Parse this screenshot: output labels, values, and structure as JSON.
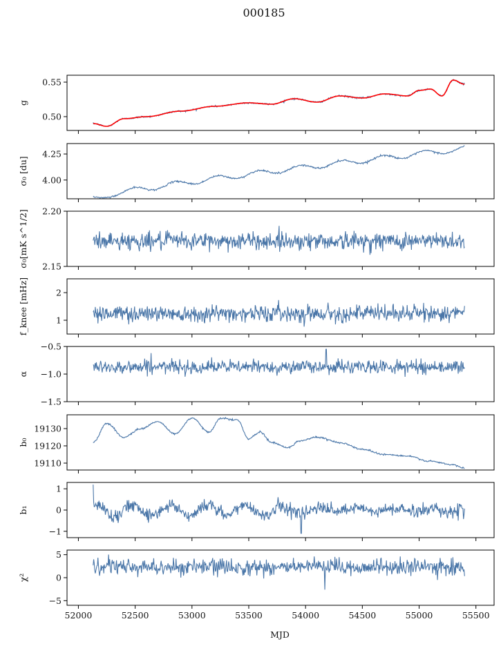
{
  "figure": {
    "title": "000185",
    "xlabel": "MJD"
  },
  "colors": {
    "series": "#4a76a8",
    "model": "#ff0000",
    "frame": "#000000"
  },
  "chart_data": {
    "type": "line",
    "xlim": [
      51900,
      55660
    ],
    "xticks": [
      52000,
      52500,
      53000,
      53500,
      54000,
      54500,
      55000,
      55500
    ],
    "data_x_range": [
      52130,
      55400
    ],
    "panels": [
      {
        "id": "g",
        "ylabel": "g",
        "ylim": [
          0.48,
          0.56
        ],
        "yticks": [
          "0.50",
          "0.55"
        ],
        "ytick_values": [
          0.5,
          0.55
        ],
        "description_points": {
          "x": [
            52130,
            52250,
            52400,
            52600,
            52900,
            53200,
            53500,
            53700,
            53900,
            54100,
            54300,
            54500,
            54700,
            54900,
            55000,
            55100,
            55200,
            55300,
            55400
          ],
          "y": [
            0.49,
            0.486,
            0.497,
            0.5,
            0.508,
            0.515,
            0.52,
            0.518,
            0.526,
            0.521,
            0.53,
            0.527,
            0.533,
            0.53,
            0.538,
            0.54,
            0.53,
            0.553,
            0.547
          ]
        },
        "trend": [
          0.488,
          0.548
        ],
        "osc_amp": 0.004,
        "noise": 0.0006,
        "has_model_overlay": true
      },
      {
        "id": "sigma0_du",
        "ylabel": "σ₀ [du]",
        "ylim": [
          3.82,
          4.35
        ],
        "yticks": [
          "4.00",
          "4.25"
        ],
        "ytick_values": [
          4.0,
          4.25
        ],
        "trend": [
          3.83,
          4.3
        ],
        "osc_amp": 0.025,
        "noise": 0.004
      },
      {
        "id": "sigma0_mK",
        "ylabel": "σ₀[mK s^1/2]",
        "ylim": [
          2.15,
          2.2
        ],
        "yticks": [
          "2.15",
          "2.20"
        ],
        "ytick_values": [
          2.15,
          2.2
        ],
        "mean": 2.173,
        "noise": 0.004
      },
      {
        "id": "fknee",
        "ylabel": "f_knee [mHz]",
        "ylim": [
          0.5,
          2.5
        ],
        "yticks": [
          "1",
          "2"
        ],
        "ytick_values": [
          1,
          2
        ],
        "mean": 1.25,
        "noise": 0.15
      },
      {
        "id": "alpha",
        "ylabel": "α",
        "ylim": [
          -1.5,
          -0.5
        ],
        "yticks": [
          "−1.5",
          "−1.0",
          "−0.5"
        ],
        "ytick_values": [
          -1.5,
          -1.0,
          -0.5
        ],
        "mean": -0.87,
        "noise": 0.06
      },
      {
        "id": "b0",
        "ylabel": "b₀",
        "ylim": [
          19106,
          19138
        ],
        "yticks": [
          "19110",
          "19120",
          "19130"
        ],
        "ytick_values": [
          19110,
          19120,
          19130
        ],
        "points_x": [
          52130,
          52250,
          52400,
          52550,
          52700,
          52850,
          53000,
          53150,
          53250,
          53400,
          53500,
          53600,
          53700,
          53850,
          53950,
          54100,
          54300,
          54500,
          54700,
          54900,
          55100,
          55300,
          55400
        ],
        "points_y": [
          19122,
          19133,
          19125,
          19130,
          19134,
          19127,
          19136,
          19128,
          19136,
          19135,
          19124,
          19128,
          19122,
          19119,
          19123,
          19125,
          19122,
          19118,
          19115,
          19114,
          19111,
          19109,
          19107
        ]
      },
      {
        "id": "b1",
        "ylabel": "b₁",
        "ylim": [
          -1.3,
          1.3
        ],
        "yticks": [
          "−1",
          "0",
          "1"
        ],
        "ytick_values": [
          -1,
          0,
          1
        ],
        "mean": 0.0,
        "noise": 0.15
      },
      {
        "id": "chi2",
        "ylabel": "χ²",
        "ylim": [
          -6,
          6
        ],
        "yticks": [
          "−5",
          "0",
          "5"
        ],
        "ytick_values": [
          -5,
          0,
          5
        ],
        "mean": 2.3,
        "noise": 0.9
      }
    ]
  }
}
